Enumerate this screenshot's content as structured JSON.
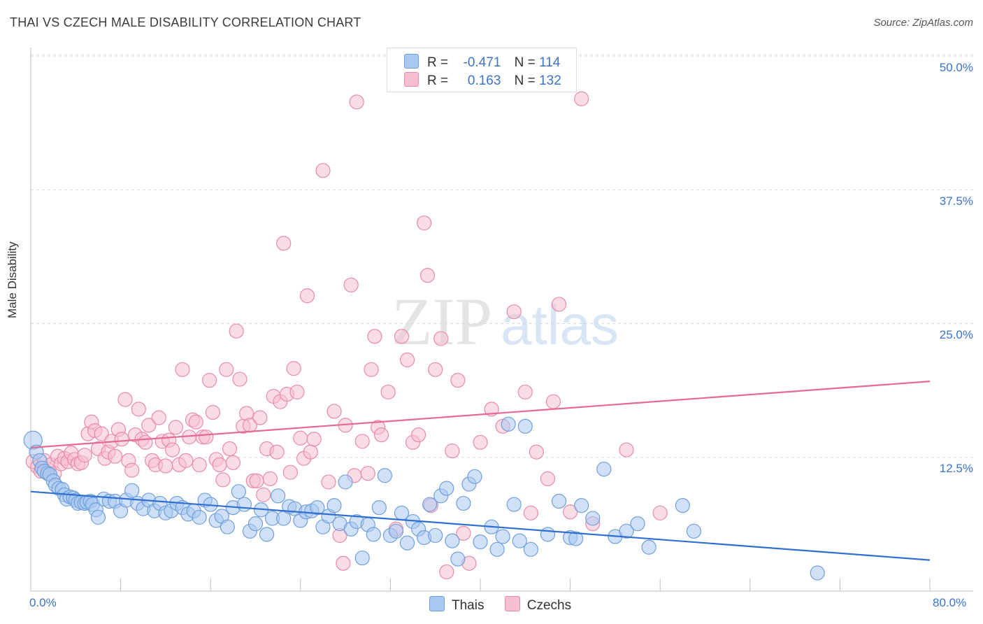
{
  "header": {
    "title": "THAI VS CZECH MALE DISABILITY CORRELATION CHART",
    "source": "Source: ZipAtlas.com"
  },
  "watermark": {
    "zip": "ZIP",
    "atlas": "atlas"
  },
  "legend": {
    "rows": [
      {
        "r_label": "R =",
        "r_value": "-0.471",
        "n_label": "N =",
        "n_value": "114"
      },
      {
        "r_label": "R =",
        "r_value": "0.163",
        "n_label": "N =",
        "n_value": "132"
      }
    ]
  },
  "bottom_legend": {
    "thais": "Thais",
    "czechs": "Czechs"
  },
  "colors": {
    "thais_fill": "#a9c8f0",
    "thais_stroke": "#6f9fdc",
    "thais_line": "#2f6fd0",
    "czechs_fill": "#f6bfd0",
    "czechs_stroke": "#e98aa8",
    "czechs_line": "#e46a93",
    "tick_text": "#3b74c9"
  },
  "chart_data": {
    "type": "scatter",
    "title": "THAI VS CZECH MALE DISABILITY CORRELATION CHART",
    "xlabel": "",
    "ylabel": "Male Disability",
    "xlim": [
      0,
      80
    ],
    "ylim": [
      0,
      50
    ],
    "x_tick_labels": [
      "0.0%",
      "80.0%"
    ],
    "y_tick_labels": [
      "12.5%",
      "25.0%",
      "37.5%",
      "50.0%"
    ],
    "y_ticks": [
      12.5,
      25,
      37.5,
      50
    ],
    "grid": true,
    "legend_position": "top-center",
    "series": [
      {
        "name": "Thais",
        "R": -0.471,
        "N": 114,
        "trend": [
          [
            0,
            9.3
          ],
          [
            80,
            2.9
          ]
        ],
        "points": [
          [
            0.2,
            14.1
          ],
          [
            0.5,
            13.0
          ],
          [
            0.8,
            12.2
          ],
          [
            1.0,
            11.5
          ],
          [
            1.2,
            11.2
          ],
          [
            1.5,
            11.0
          ],
          [
            1.7,
            10.9
          ],
          [
            2.0,
            10.3
          ],
          [
            2.2,
            9.9
          ],
          [
            2.5,
            9.6
          ],
          [
            2.8,
            9.5
          ],
          [
            3.0,
            9.0
          ],
          [
            3.2,
            8.6
          ],
          [
            3.5,
            8.8
          ],
          [
            3.8,
            8.7
          ],
          [
            4.0,
            8.5
          ],
          [
            4.2,
            8.2
          ],
          [
            4.5,
            8.3
          ],
          [
            4.8,
            8.2
          ],
          [
            5.0,
            8.3
          ],
          [
            5.3,
            8.4
          ],
          [
            5.5,
            8.1
          ],
          [
            5.8,
            7.6
          ],
          [
            6.0,
            6.9
          ],
          [
            6.5,
            8.6
          ],
          [
            7.0,
            8.4
          ],
          [
            7.5,
            8.4
          ],
          [
            8.0,
            7.5
          ],
          [
            8.5,
            8.5
          ],
          [
            9.0,
            9.4
          ],
          [
            9.5,
            8.2
          ],
          [
            10.0,
            7.7
          ],
          [
            10.5,
            8.5
          ],
          [
            11.0,
            7.5
          ],
          [
            11.5,
            8.2
          ],
          [
            12.0,
            7.3
          ],
          [
            12.5,
            7.5
          ],
          [
            13.0,
            8.2
          ],
          [
            13.5,
            7.8
          ],
          [
            14.0,
            7.2
          ],
          [
            14.5,
            7.5
          ],
          [
            15.0,
            6.9
          ],
          [
            15.5,
            8.5
          ],
          [
            16.0,
            8.1
          ],
          [
            16.5,
            6.6
          ],
          [
            17.0,
            7.0
          ],
          [
            17.5,
            6.0
          ],
          [
            18.0,
            7.8
          ],
          [
            18.5,
            9.3
          ],
          [
            19.0,
            8.1
          ],
          [
            19.5,
            5.6
          ],
          [
            20.0,
            6.3
          ],
          [
            20.5,
            7.6
          ],
          [
            21.0,
            5.3
          ],
          [
            21.5,
            6.8
          ],
          [
            22.0,
            8.9
          ],
          [
            22.5,
            6.8
          ],
          [
            23.0,
            7.9
          ],
          [
            23.5,
            7.7
          ],
          [
            24.0,
            6.6
          ],
          [
            24.5,
            7.4
          ],
          [
            25.0,
            7.5
          ],
          [
            25.5,
            7.8
          ],
          [
            26.0,
            6.0
          ],
          [
            26.5,
            7.0
          ],
          [
            27.0,
            8.0
          ],
          [
            27.5,
            6.3
          ],
          [
            28.0,
            10.2
          ],
          [
            28.5,
            5.8
          ],
          [
            29.0,
            6.5
          ],
          [
            29.5,
            3.1
          ],
          [
            30.0,
            6.2
          ],
          [
            30.5,
            5.3
          ],
          [
            31.0,
            7.8
          ],
          [
            31.5,
            10.8
          ],
          [
            32.0,
            5.2
          ],
          [
            32.5,
            5.6
          ],
          [
            33.0,
            7.3
          ],
          [
            33.5,
            4.5
          ],
          [
            34.0,
            6.5
          ],
          [
            34.5,
            5.8
          ],
          [
            35.0,
            5.0
          ],
          [
            35.5,
            8.1
          ],
          [
            36.0,
            5.2
          ],
          [
            36.5,
            8.9
          ],
          [
            37.0,
            9.6
          ],
          [
            37.5,
            4.7
          ],
          [
            38.0,
            3.0
          ],
          [
            38.5,
            8.2
          ],
          [
            39.0,
            10.0
          ],
          [
            39.5,
            10.7
          ],
          [
            40.0,
            4.6
          ],
          [
            41.0,
            6.0
          ],
          [
            41.5,
            3.9
          ],
          [
            42.0,
            5.1
          ],
          [
            42.5,
            15.6
          ],
          [
            43.0,
            8.1
          ],
          [
            43.5,
            4.7
          ],
          [
            44.0,
            15.4
          ],
          [
            44.5,
            3.9
          ],
          [
            46.0,
            5.3
          ],
          [
            47.0,
            8.4
          ],
          [
            48.0,
            5.0
          ],
          [
            48.5,
            4.9
          ],
          [
            49.0,
            8.0
          ],
          [
            50.0,
            6.8
          ],
          [
            51.0,
            11.4
          ],
          [
            52.0,
            5.1
          ],
          [
            53.0,
            5.6
          ],
          [
            54.0,
            6.3
          ],
          [
            55.0,
            4.1
          ],
          [
            58.0,
            8.0
          ],
          [
            59.0,
            5.6
          ],
          [
            70.0,
            1.7
          ]
        ]
      },
      {
        "name": "Czechs",
        "R": 0.163,
        "N": 132,
        "trend": [
          [
            0,
            13.4
          ],
          [
            80,
            19.6
          ]
        ],
        "points": [
          [
            0.2,
            12.1
          ],
          [
            0.6,
            11.6
          ],
          [
            0.9,
            11.2
          ],
          [
            1.2,
            12.2
          ],
          [
            1.5,
            11.4
          ],
          [
            1.8,
            11.8
          ],
          [
            2.1,
            11.0
          ],
          [
            2.4,
            12.6
          ],
          [
            2.7,
            11.9
          ],
          [
            3.0,
            12.4
          ],
          [
            3.3,
            12.1
          ],
          [
            3.6,
            12.9
          ],
          [
            3.9,
            12.3
          ],
          [
            4.2,
            11.9
          ],
          [
            4.5,
            12.0
          ],
          [
            4.8,
            12.7
          ],
          [
            5.1,
            14.7
          ],
          [
            5.4,
            15.8
          ],
          [
            5.7,
            15.0
          ],
          [
            6.0,
            13.3
          ],
          [
            6.3,
            14.7
          ],
          [
            6.6,
            12.4
          ],
          [
            6.9,
            13.0
          ],
          [
            7.2,
            14.0
          ],
          [
            7.5,
            12.6
          ],
          [
            7.8,
            15.1
          ],
          [
            8.1,
            14.2
          ],
          [
            8.4,
            17.9
          ],
          [
            8.7,
            12.2
          ],
          [
            9.0,
            11.3
          ],
          [
            9.3,
            14.6
          ],
          [
            9.6,
            17.0
          ],
          [
            9.9,
            14.2
          ],
          [
            10.2,
            13.9
          ],
          [
            10.5,
            15.5
          ],
          [
            10.8,
            12.2
          ],
          [
            11.1,
            11.8
          ],
          [
            11.4,
            16.2
          ],
          [
            11.7,
            14.0
          ],
          [
            12.0,
            11.7
          ],
          [
            12.3,
            14.1
          ],
          [
            12.6,
            13.2
          ],
          [
            12.9,
            15.3
          ],
          [
            13.2,
            11.8
          ],
          [
            13.5,
            20.7
          ],
          [
            13.8,
            12.2
          ],
          [
            14.1,
            14.4
          ],
          [
            14.4,
            16.0
          ],
          [
            14.7,
            15.8
          ],
          [
            15.0,
            11.8
          ],
          [
            15.3,
            14.4
          ],
          [
            15.6,
            14.4
          ],
          [
            15.9,
            19.7
          ],
          [
            16.2,
            16.7
          ],
          [
            16.5,
            12.3
          ],
          [
            16.8,
            11.8
          ],
          [
            17.1,
            10.4
          ],
          [
            17.4,
            20.7
          ],
          [
            17.7,
            13.3
          ],
          [
            18.0,
            12.0
          ],
          [
            18.3,
            24.3
          ],
          [
            18.6,
            19.8
          ],
          [
            18.9,
            15.4
          ],
          [
            19.2,
            16.6
          ],
          [
            19.5,
            15.5
          ],
          [
            19.8,
            10.3
          ],
          [
            20.1,
            10.3
          ],
          [
            20.4,
            16.2
          ],
          [
            20.7,
            9.0
          ],
          [
            21.0,
            13.3
          ],
          [
            21.3,
            10.5
          ],
          [
            21.6,
            18.2
          ],
          [
            21.9,
            13.0
          ],
          [
            22.2,
            17.7
          ],
          [
            22.5,
            32.5
          ],
          [
            22.8,
            18.4
          ],
          [
            23.1,
            11.1
          ],
          [
            23.4,
            20.8
          ],
          [
            23.7,
            18.6
          ],
          [
            24.0,
            14.3
          ],
          [
            24.3,
            12.4
          ],
          [
            24.6,
            27.6
          ],
          [
            24.9,
            13.0
          ],
          [
            25.2,
            14.2
          ],
          [
            26.0,
            39.3
          ],
          [
            26.5,
            10.2
          ],
          [
            27.0,
            16.8
          ],
          [
            27.5,
            5.2
          ],
          [
            27.8,
            2.6
          ],
          [
            28.0,
            15.5
          ],
          [
            28.5,
            28.6
          ],
          [
            28.8,
            10.8
          ],
          [
            29.0,
            45.7
          ],
          [
            29.5,
            14.0
          ],
          [
            30.0,
            11.0
          ],
          [
            30.3,
            20.7
          ],
          [
            30.6,
            23.8
          ],
          [
            30.9,
            15.3
          ],
          [
            31.2,
            14.6
          ],
          [
            31.8,
            18.6
          ],
          [
            32.5,
            5.8
          ],
          [
            33.0,
            23.8
          ],
          [
            33.5,
            21.6
          ],
          [
            34.0,
            13.9
          ],
          [
            34.5,
            14.6
          ],
          [
            35.0,
            34.4
          ],
          [
            35.3,
            29.5
          ],
          [
            35.6,
            8.0
          ],
          [
            36.0,
            20.7
          ],
          [
            36.5,
            23.6
          ],
          [
            37.0,
            1.8
          ],
          [
            37.5,
            13.1
          ],
          [
            38.0,
            19.7
          ],
          [
            38.5,
            5.4
          ],
          [
            39.0,
            2.6
          ],
          [
            40.0,
            13.9
          ],
          [
            41.0,
            17.0
          ],
          [
            42.0,
            15.4
          ],
          [
            43.0,
            26.1
          ],
          [
            44.0,
            18.6
          ],
          [
            44.5,
            7.3
          ],
          [
            45.0,
            13.0
          ],
          [
            46.0,
            10.5
          ],
          [
            46.5,
            17.7
          ],
          [
            47.0,
            26.8
          ],
          [
            48.0,
            7.4
          ],
          [
            49.0,
            46.0
          ],
          [
            50.0,
            6.3
          ],
          [
            53.0,
            13.2
          ],
          [
            56.0,
            7.3
          ]
        ]
      }
    ]
  }
}
